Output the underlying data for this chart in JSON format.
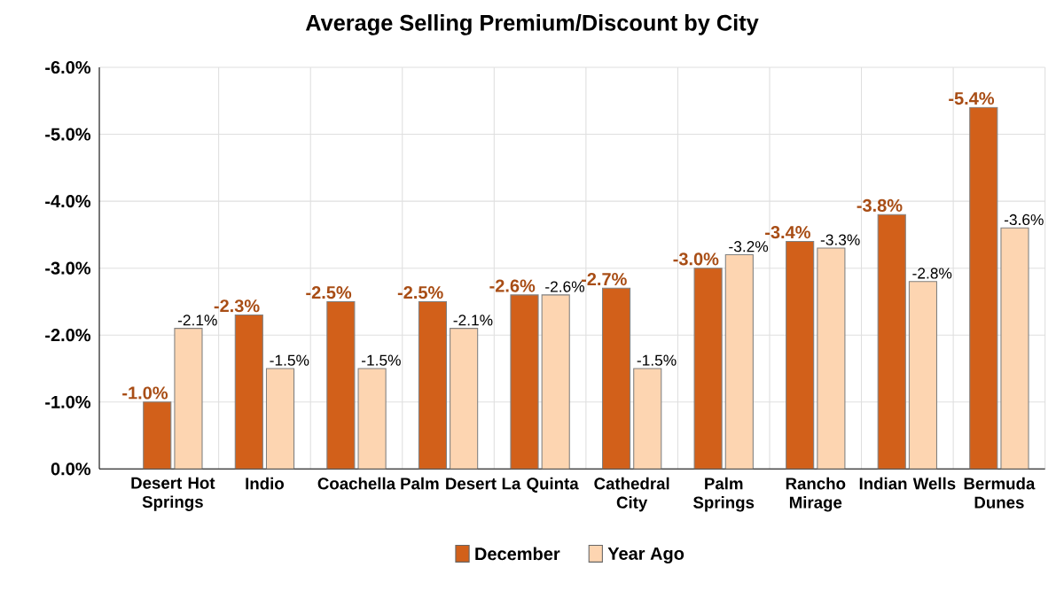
{
  "chart_data": {
    "type": "bar",
    "title": "Average Selling Premium/Discount by City",
    "categories": [
      "Desert Hot Springs",
      "Indio",
      "Coachella",
      "Palm Desert",
      "La Quinta",
      "Cathedral City",
      "Palm Springs",
      "Rancho Mirage",
      "Indian Wells",
      "Bermuda Dunes"
    ],
    "series": [
      {
        "name": "December",
        "color": "#d2601a",
        "values": [
          -1.0,
          -2.3,
          -2.5,
          -2.5,
          -2.6,
          -2.7,
          -3.0,
          -3.4,
          -3.8,
          -5.4
        ],
        "value_labels": [
          "-1.0%",
          "-2.3%",
          "-2.5%",
          "-2.5%",
          "-2.6%",
          "-2.7%",
          "-3.0%",
          "-3.4%",
          "-3.8%",
          "-5.4%"
        ]
      },
      {
        "name": "Year Ago",
        "color": "#fdd5b1",
        "values": [
          -2.1,
          -1.5,
          -1.5,
          -2.1,
          -2.6,
          -1.5,
          -3.2,
          -3.3,
          -2.8,
          -3.6
        ],
        "value_labels": [
          "-2.1%",
          "-1.5%",
          "-1.5%",
          "-2.1%",
          "-2.6%",
          "-1.5%",
          "-3.2%",
          "-3.3%",
          "-2.8%",
          "-3.6%"
        ]
      }
    ],
    "ylim": [
      0,
      -6
    ],
    "yticks": [
      {
        "value": 0,
        "label": "0.0%"
      },
      {
        "value": -1,
        "label": "-1.0%"
      },
      {
        "value": -2,
        "label": "-2.0%"
      },
      {
        "value": -3,
        "label": "-3.0%"
      },
      {
        "value": -4,
        "label": "-4.0%"
      },
      {
        "value": -5,
        "label": "-5.0%"
      },
      {
        "value": -6,
        "label": "-6.0%"
      }
    ],
    "grid": true,
    "legend": "bottom"
  }
}
